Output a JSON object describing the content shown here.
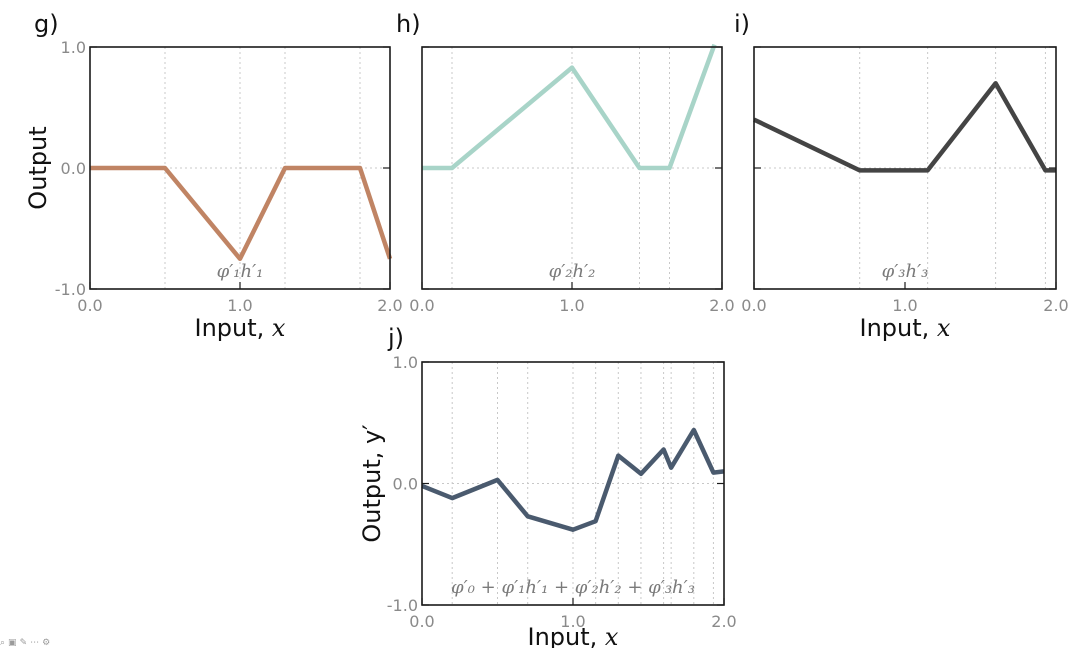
{
  "figure": {
    "panels": [
      {
        "id": "g",
        "letter": "g)",
        "annotation": "φ′₁h′₁",
        "ylabel": "Output",
        "xlabel_text": "Input, ",
        "xlabel_var": "x"
      },
      {
        "id": "h",
        "letter": "h)",
        "annotation": "φ′₂h′₂",
        "ylabel": "",
        "xlabel_text": "",
        "xlabel_var": ""
      },
      {
        "id": "i",
        "letter": "i)",
        "annotation": "φ′₃h′₃",
        "ylabel": "",
        "xlabel_text": "Input, ",
        "xlabel_var": "x"
      },
      {
        "id": "j",
        "letter": "j)",
        "annotation": "φ′₀ + φ′₁h′₁ + φ′₂h′₂ + φ′₃h′₃",
        "ylabel": "Output, y′",
        "xlabel_text": "Input, ",
        "xlabel_var": "x"
      }
    ],
    "toolbar_icons": [
      "zoom-icon",
      "image-icon",
      "edit-icon",
      "more-icon",
      "settings-icon"
    ]
  },
  "chart_data": [
    {
      "type": "line",
      "panel": "g",
      "title": "",
      "xlabel": "Input, x",
      "ylabel": "Output",
      "xlim": [
        0,
        2
      ],
      "ylim": [
        -1,
        1
      ],
      "xticks": [
        "0.0",
        "1.0",
        "2.0"
      ],
      "yticks": [
        "-1.0",
        "0.0",
        "1.0"
      ],
      "grid_x": [
        0.5,
        1.0,
        1.3,
        1.8
      ],
      "grid_y": [
        0
      ],
      "color": "#c08464",
      "series": [
        {
          "name": "φ′₁h′₁",
          "x": [
            0,
            0.5,
            1.0,
            1.3,
            1.8,
            2.0
          ],
          "y": [
            0,
            0,
            -0.75,
            0,
            0,
            -0.75
          ]
        }
      ]
    },
    {
      "type": "line",
      "panel": "h",
      "title": "",
      "xlabel": "",
      "ylabel": "",
      "xlim": [
        0,
        2
      ],
      "ylim": [
        -1,
        1
      ],
      "xticks": [
        "0.0",
        "1.0",
        "2.0"
      ],
      "yticks": [],
      "grid_x": [
        0.2,
        1.0,
        1.45,
        1.65
      ],
      "grid_y": [
        0
      ],
      "color": "#a8d4c8",
      "series": [
        {
          "name": "φ′₂h′₂",
          "x": [
            0,
            0.2,
            1.0,
            1.45,
            1.65,
            1.95
          ],
          "y": [
            0,
            0,
            0.83,
            0,
            0,
            1.02
          ]
        }
      ]
    },
    {
      "type": "line",
      "panel": "i",
      "title": "",
      "xlabel": "Input, x",
      "ylabel": "",
      "xlim": [
        0,
        2
      ],
      "ylim": [
        -1,
        1
      ],
      "xticks": [
        "0.0",
        "1.0",
        "2.0"
      ],
      "yticks": [],
      "grid_x": [
        0.7,
        1.15,
        1.6,
        1.93
      ],
      "grid_y": [
        0
      ],
      "color": "#444444",
      "series": [
        {
          "name": "φ′₃h′₃",
          "x": [
            0,
            0.7,
            1.15,
            1.6,
            1.93,
            2.0
          ],
          "y": [
            0.4,
            -0.02,
            -0.02,
            0.7,
            -0.02,
            -0.02
          ]
        }
      ]
    },
    {
      "type": "line",
      "panel": "j",
      "title": "",
      "xlabel": "Input, x",
      "ylabel": "Output, y′",
      "xlim": [
        0,
        2
      ],
      "ylim": [
        -1,
        1
      ],
      "xticks": [
        "0.0",
        "1.0",
        "2.0"
      ],
      "yticks": [
        "-1.0",
        "0.0",
        "1.0"
      ],
      "grid_x": [
        0.2,
        0.5,
        0.7,
        1.0,
        1.15,
        1.3,
        1.45,
        1.6,
        1.65,
        1.8,
        1.93
      ],
      "grid_y": [
        0
      ],
      "color": "#4a5a6e",
      "series": [
        {
          "name": "φ′₀ + φ′₁h′₁ + φ′₂h′₂ + φ′₃h′₃",
          "x": [
            0,
            0.2,
            0.5,
            0.7,
            1.0,
            1.15,
            1.3,
            1.45,
            1.6,
            1.65,
            1.8,
            1.93,
            2.0
          ],
          "y": [
            -0.02,
            -0.12,
            0.03,
            -0.27,
            -0.38,
            -0.31,
            0.23,
            0.08,
            0.28,
            0.13,
            0.44,
            0.09,
            0.1
          ]
        }
      ]
    }
  ]
}
